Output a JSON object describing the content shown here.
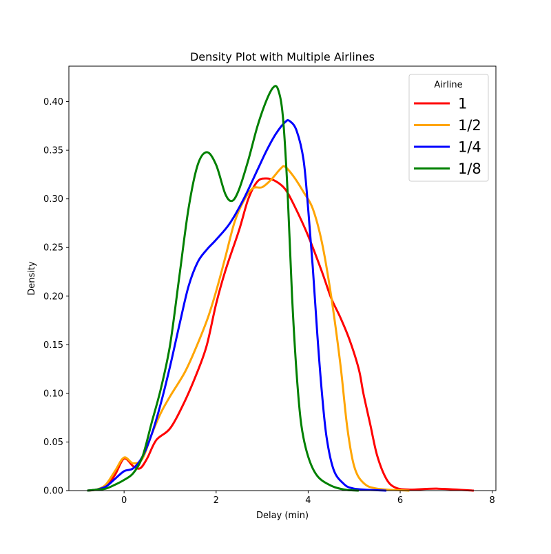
{
  "chart_data": {
    "type": "line",
    "title": "Density Plot with Multiple Airlines",
    "xlabel": "Delay (min)",
    "ylabel": "Density",
    "xlim": [
      -1.2,
      8.08
    ],
    "ylim": [
      0,
      0.4365
    ],
    "x_ticks": [
      0,
      2,
      4,
      6,
      8
    ],
    "x_tick_labels": [
      "0",
      "2",
      "4",
      "6",
      "8"
    ],
    "y_ticks": [
      0,
      0.05,
      0.1,
      0.15,
      0.2,
      0.25,
      0.3,
      0.35,
      0.4
    ],
    "y_tick_labels": [
      "0.00",
      "0.05",
      "0.10",
      "0.15",
      "0.20",
      "0.25",
      "0.30",
      "0.35",
      "0.40"
    ],
    "grid": false,
    "legend": {
      "title": "Airline",
      "placement": "top-right"
    },
    "series": [
      {
        "name": "1",
        "color": "#ff0000",
        "points": [
          [
            -0.8,
            0.0
          ],
          [
            -0.6,
            0.001
          ],
          [
            -0.4,
            0.004
          ],
          [
            -0.2,
            0.016
          ],
          [
            0.0,
            0.033
          ],
          [
            0.2,
            0.025
          ],
          [
            0.35,
            0.023
          ],
          [
            0.5,
            0.033
          ],
          [
            0.7,
            0.052
          ],
          [
            1.0,
            0.064
          ],
          [
            1.3,
            0.09
          ],
          [
            1.6,
            0.123
          ],
          [
            1.8,
            0.15
          ],
          [
            2.0,
            0.192
          ],
          [
            2.2,
            0.226
          ],
          [
            2.5,
            0.268
          ],
          [
            2.7,
            0.3
          ],
          [
            2.9,
            0.318
          ],
          [
            3.1,
            0.321
          ],
          [
            3.3,
            0.318
          ],
          [
            3.5,
            0.31
          ],
          [
            3.7,
            0.293
          ],
          [
            4.0,
            0.262
          ],
          [
            4.3,
            0.225
          ],
          [
            4.5,
            0.198
          ],
          [
            4.7,
            0.178
          ],
          [
            4.9,
            0.155
          ],
          [
            5.1,
            0.125
          ],
          [
            5.2,
            0.1
          ],
          [
            5.35,
            0.068
          ],
          [
            5.5,
            0.036
          ],
          [
            5.7,
            0.012
          ],
          [
            5.9,
            0.003
          ],
          [
            6.2,
            0.001
          ],
          [
            6.8,
            0.002
          ],
          [
            7.6,
            0.0
          ]
        ]
      },
      {
        "name": "1/2",
        "color": "#ffa500",
        "points": [
          [
            -0.8,
            0.0
          ],
          [
            -0.6,
            0.001
          ],
          [
            -0.4,
            0.006
          ],
          [
            -0.2,
            0.02
          ],
          [
            0.0,
            0.034
          ],
          [
            0.2,
            0.028
          ],
          [
            0.4,
            0.033
          ],
          [
            0.6,
            0.058
          ],
          [
            0.8,
            0.08
          ],
          [
            1.0,
            0.097
          ],
          [
            1.3,
            0.12
          ],
          [
            1.5,
            0.14
          ],
          [
            1.8,
            0.175
          ],
          [
            2.0,
            0.205
          ],
          [
            2.2,
            0.24
          ],
          [
            2.4,
            0.276
          ],
          [
            2.6,
            0.298
          ],
          [
            2.8,
            0.311
          ],
          [
            3.0,
            0.312
          ],
          [
            3.2,
            0.32
          ],
          [
            3.4,
            0.331
          ],
          [
            3.5,
            0.333
          ],
          [
            3.7,
            0.322
          ],
          [
            3.9,
            0.307
          ],
          [
            4.1,
            0.29
          ],
          [
            4.3,
            0.255
          ],
          [
            4.5,
            0.2
          ],
          [
            4.7,
            0.13
          ],
          [
            4.85,
            0.065
          ],
          [
            5.0,
            0.025
          ],
          [
            5.2,
            0.008
          ],
          [
            5.5,
            0.002
          ],
          [
            6.2,
            0.0
          ]
        ]
      },
      {
        "name": "1/4",
        "color": "#0000ff",
        "points": [
          [
            -0.8,
            0.0
          ],
          [
            -0.6,
            0.001
          ],
          [
            -0.4,
            0.004
          ],
          [
            -0.2,
            0.012
          ],
          [
            0.0,
            0.02
          ],
          [
            0.2,
            0.023
          ],
          [
            0.4,
            0.035
          ],
          [
            0.6,
            0.058
          ],
          [
            0.8,
            0.09
          ],
          [
            1.0,
            0.128
          ],
          [
            1.2,
            0.17
          ],
          [
            1.4,
            0.21
          ],
          [
            1.6,
            0.235
          ],
          [
            1.8,
            0.248
          ],
          [
            2.0,
            0.258
          ],
          [
            2.3,
            0.275
          ],
          [
            2.6,
            0.3
          ],
          [
            2.9,
            0.33
          ],
          [
            3.1,
            0.35
          ],
          [
            3.3,
            0.367
          ],
          [
            3.5,
            0.379
          ],
          [
            3.6,
            0.38
          ],
          [
            3.75,
            0.37
          ],
          [
            3.9,
            0.34
          ],
          [
            4.0,
            0.29
          ],
          [
            4.1,
            0.23
          ],
          [
            4.2,
            0.16
          ],
          [
            4.3,
            0.1
          ],
          [
            4.4,
            0.055
          ],
          [
            4.55,
            0.022
          ],
          [
            4.75,
            0.008
          ],
          [
            5.0,
            0.002
          ],
          [
            5.7,
            0.0
          ]
        ]
      },
      {
        "name": "1/8",
        "color": "#008000",
        "points": [
          [
            -0.8,
            0.0
          ],
          [
            -0.6,
            0.001
          ],
          [
            -0.4,
            0.002
          ],
          [
            -0.2,
            0.006
          ],
          [
            0.0,
            0.011
          ],
          [
            0.2,
            0.018
          ],
          [
            0.4,
            0.035
          ],
          [
            0.6,
            0.07
          ],
          [
            0.8,
            0.105
          ],
          [
            1.0,
            0.15
          ],
          [
            1.2,
            0.22
          ],
          [
            1.4,
            0.29
          ],
          [
            1.6,
            0.335
          ],
          [
            1.8,
            0.348
          ],
          [
            2.0,
            0.335
          ],
          [
            2.2,
            0.305
          ],
          [
            2.35,
            0.298
          ],
          [
            2.5,
            0.31
          ],
          [
            2.7,
            0.34
          ],
          [
            2.9,
            0.375
          ],
          [
            3.1,
            0.402
          ],
          [
            3.25,
            0.415
          ],
          [
            3.35,
            0.412
          ],
          [
            3.45,
            0.385
          ],
          [
            3.55,
            0.31
          ],
          [
            3.65,
            0.2
          ],
          [
            3.75,
            0.12
          ],
          [
            3.85,
            0.068
          ],
          [
            4.0,
            0.035
          ],
          [
            4.2,
            0.015
          ],
          [
            4.5,
            0.005
          ],
          [
            4.8,
            0.001
          ],
          [
            5.1,
            0.0
          ]
        ]
      }
    ]
  }
}
